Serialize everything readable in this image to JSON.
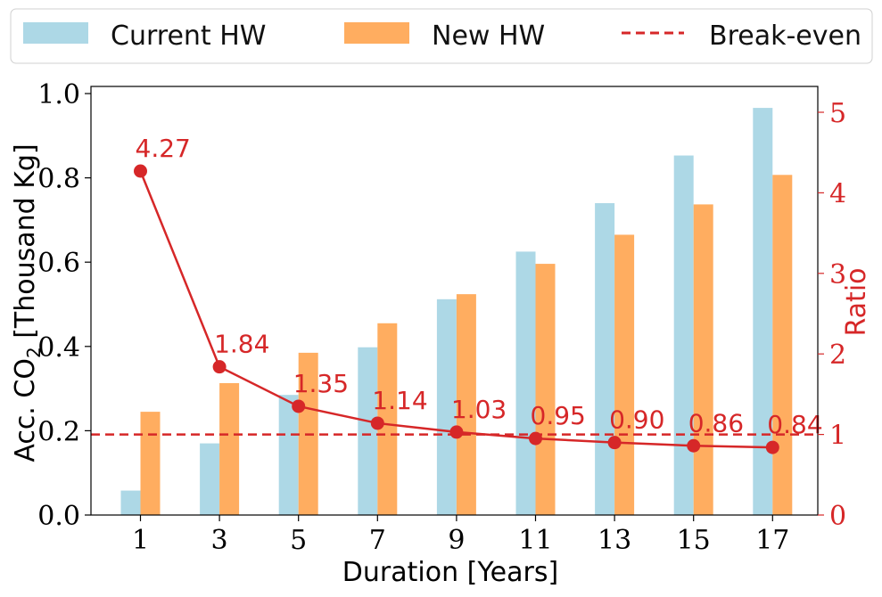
{
  "chart_data": {
    "type": "bar",
    "xlabel": "Duration [Years]",
    "ylabel_left": {
      "prefix": "Acc. CO",
      "subscript": "2",
      "suffix": " [Thousand Kg]"
    },
    "ylabel_right": "Ratio",
    "categories": [
      "1",
      "3",
      "5",
      "7",
      "9",
      "11",
      "13",
      "15",
      "17"
    ],
    "ylim_left": [
      0,
      1.0
    ],
    "yticks_left": [
      "0.0",
      "0.2",
      "0.4",
      "0.6",
      "0.8",
      "1.0"
    ],
    "ylim_right": [
      0,
      5.2
    ],
    "yticks_right": [
      "0",
      "1",
      "2",
      "3",
      "4",
      "5"
    ],
    "series": [
      {
        "name": "Current HW",
        "color": "#add8e6",
        "axis": "left",
        "values": [
          0.058,
          0.17,
          0.285,
          0.398,
          0.512,
          0.625,
          0.74,
          0.853,
          0.966
        ]
      },
      {
        "name": "New HW",
        "color": "#ffad60",
        "axis": "left",
        "values": [
          0.245,
          0.313,
          0.385,
          0.455,
          0.524,
          0.596,
          0.665,
          0.737,
          0.807
        ]
      }
    ],
    "ratio_line": {
      "axis": "right",
      "color": "#d62728",
      "values": [
        4.27,
        1.84,
        1.35,
        1.14,
        1.03,
        0.95,
        0.9,
        0.86,
        0.84
      ],
      "labels": [
        "4.27",
        "1.84",
        "1.35",
        "1.14",
        "1.03",
        "0.95",
        "0.90",
        "0.86",
        "0.84"
      ]
    },
    "break_even": {
      "name": "Break-even",
      "value": 1.0,
      "axis": "right",
      "color": "#d62728",
      "style": "dashed"
    },
    "legend": {
      "placement": "top",
      "columns": 3
    },
    "grid": false
  }
}
